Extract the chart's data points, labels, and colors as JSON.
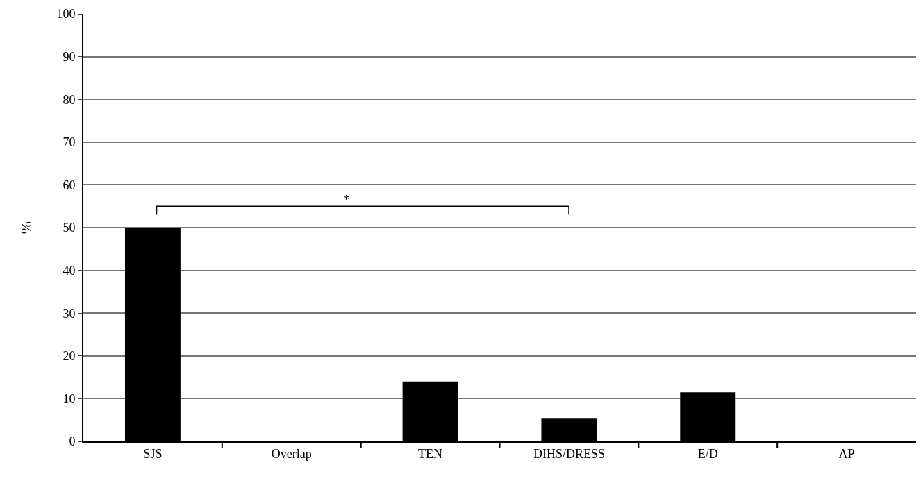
{
  "chart_data": {
    "type": "bar",
    "ylabel": "%",
    "categories": [
      "SJS",
      "Overlap",
      "TEN",
      "DIHS/DRESS",
      "E/D",
      "AP"
    ],
    "values": [
      50,
      0,
      14,
      5.3,
      11.5,
      0
    ],
    "color": "#000000",
    "ylim": [
      0,
      100
    ],
    "yticks": [
      0,
      10,
      20,
      30,
      40,
      50,
      60,
      70,
      80,
      90,
      100
    ],
    "grid": "y",
    "annotations": [
      "*"
    ]
  }
}
